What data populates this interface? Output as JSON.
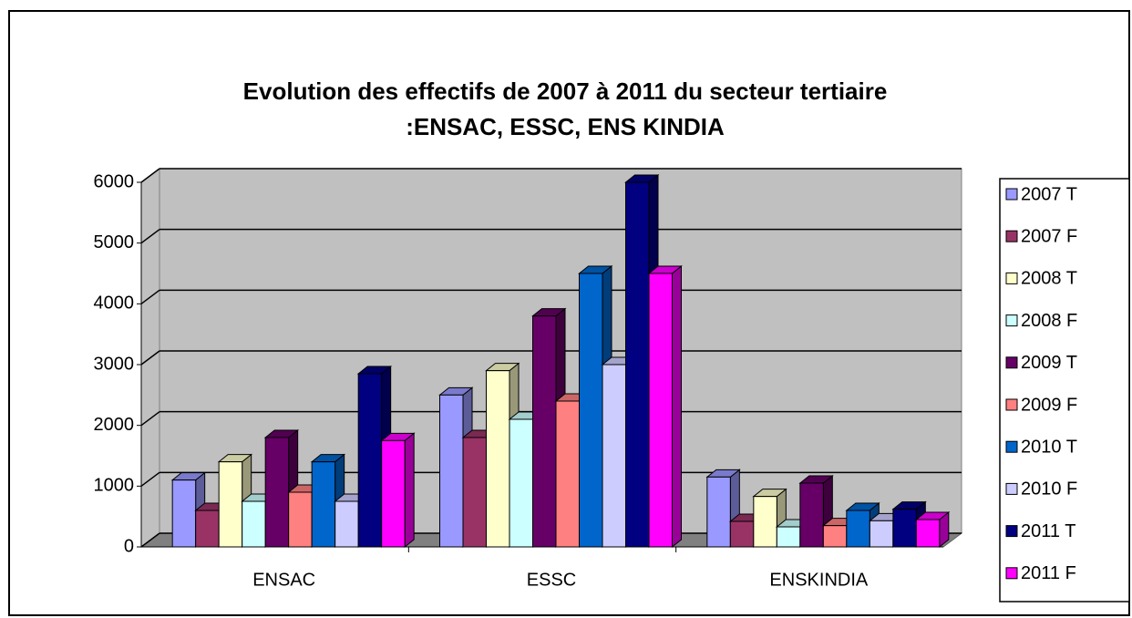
{
  "chart_data": {
    "type": "bar3d",
    "title": [
      "Evolution des effectifs de 2007 à 2011 du secteur tertiaire",
      ":ENSAC, ESSC, ENS KINDIA"
    ],
    "categories": [
      "ENSAC",
      "ESSC",
      "ENSKINDIA"
    ],
    "series": [
      {
        "name": "2007 T",
        "color": "#9999ff",
        "values": [
          1100,
          2500,
          1150
        ]
      },
      {
        "name": "2007 F",
        "color": "#993366",
        "values": [
          600,
          1800,
          420
        ]
      },
      {
        "name": "2008 T",
        "color": "#ffffcc",
        "values": [
          1400,
          2900,
          830
        ]
      },
      {
        "name": "2008 F",
        "color": "#ccffff",
        "values": [
          750,
          2100,
          330
        ]
      },
      {
        "name": "2009 T",
        "color": "#660066",
        "values": [
          1800,
          3800,
          1050
        ]
      },
      {
        "name": "2009 F",
        "color": "#ff8080",
        "values": [
          900,
          2400,
          350
        ]
      },
      {
        "name": "2010 T",
        "color": "#0066cc",
        "values": [
          1400,
          4500,
          600
        ]
      },
      {
        "name": "2010 F",
        "color": "#ccccff",
        "values": [
          750,
          3000,
          430
        ]
      },
      {
        "name": "2011 T",
        "color": "#000080",
        "values": [
          2850,
          6000,
          620
        ]
      },
      {
        "name": "2011 F",
        "color": "#ff00ff",
        "values": [
          1750,
          4500,
          450
        ]
      }
    ],
    "ylim": [
      0,
      6000
    ],
    "yticks": [
      0,
      1000,
      2000,
      3000,
      4000,
      5000,
      6000
    ],
    "grid": true,
    "legend": "right"
  }
}
